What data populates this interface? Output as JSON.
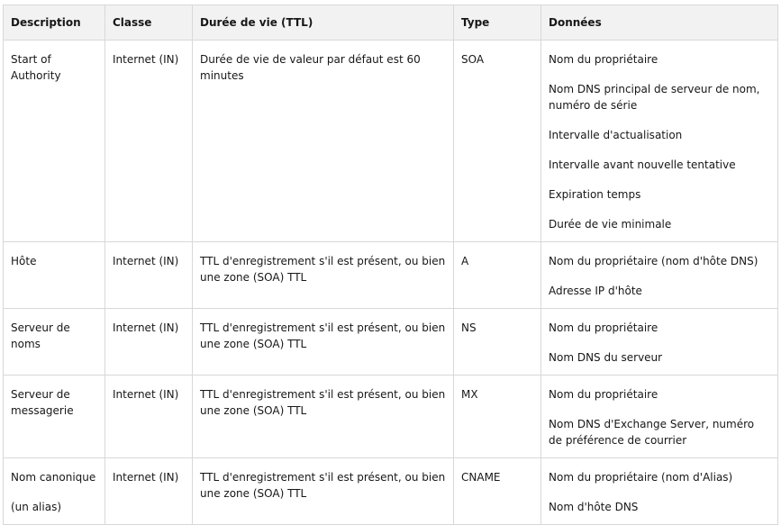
{
  "table": {
    "headers": [
      "Description",
      "Classe",
      "Durée de vie (TTL)",
      "Type",
      "Données"
    ],
    "rows": [
      {
        "description": [
          "Start of Authority"
        ],
        "classe": "Internet (IN)",
        "ttl": "Durée de vie de valeur par défaut est 60 minutes",
        "type": "SOA",
        "donnees": [
          "Nom du propriétaire",
          "Nom DNS principal de serveur de nom, numéro de série",
          "Intervalle d'actualisation",
          "Intervalle avant nouvelle tentative",
          "Expiration temps",
          "Durée de vie minimale"
        ]
      },
      {
        "description": [
          "Hôte"
        ],
        "classe": "Internet (IN)",
        "ttl": "TTL d'enregistrement s'il est présent, ou bien une zone (SOA) TTL",
        "type": "A",
        "donnees": [
          "Nom du propriétaire (nom d'hôte DNS)",
          "Adresse IP d'hôte"
        ]
      },
      {
        "description": [
          "Serveur de noms"
        ],
        "classe": "Internet (IN)",
        "ttl": "TTL d'enregistrement s'il est présent, ou bien une zone (SOA) TTL",
        "type": "NS",
        "donnees": [
          "Nom du propriétaire",
          "Nom DNS du serveur"
        ]
      },
      {
        "description": [
          "Serveur de messagerie"
        ],
        "classe": "Internet (IN)",
        "ttl": "TTL d'enregistrement s'il est présent, ou bien une zone (SOA) TTL",
        "type": "MX",
        "donnees": [
          "Nom du propriétaire",
          "Nom DNS d'Exchange Server, numéro de préférence de courrier"
        ]
      },
      {
        "description": [
          "Nom canonique",
          "(un alias)"
        ],
        "classe": "Internet (IN)",
        "ttl": "TTL d'enregistrement s'il est présent, ou bien une zone (SOA) TTL",
        "type": "CNAME",
        "donnees": [
          "Nom du propriétaire (nom d'Alias)",
          "Nom d'hôte DNS"
        ]
      }
    ]
  }
}
